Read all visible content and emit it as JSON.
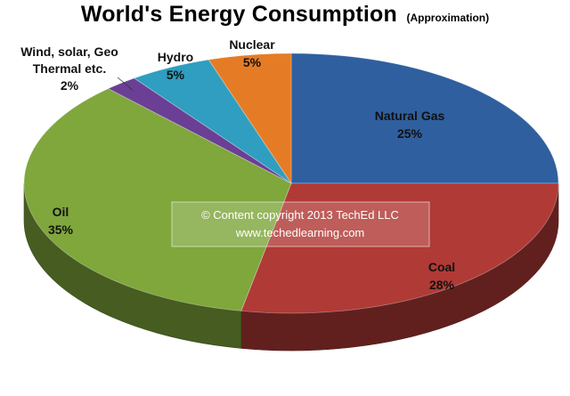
{
  "chart_data": {
    "type": "pie",
    "title": "World's Energy Consumption",
    "subtitle": "(Approximation)",
    "categories": [
      "Natural Gas",
      "Coal",
      "Oil",
      "Wind, solar, Geo Thermal etc.",
      "Hydro",
      "Nuclear"
    ],
    "values": [
      25,
      28,
      35,
      2,
      5,
      5
    ],
    "unit": "%",
    "labels": [
      {
        "lines": [
          "Natural Gas",
          "25%"
        ]
      },
      {
        "lines": [
          "Coal",
          "28%"
        ]
      },
      {
        "lines": [
          "Oil",
          "35%"
        ]
      },
      {
        "lines": [
          "Wind, solar, Geo",
          "Thermal etc.",
          "2%"
        ]
      },
      {
        "lines": [
          "Hydro",
          "5%"
        ]
      },
      {
        "lines": [
          "Nuclear",
          "5%"
        ]
      }
    ],
    "colors": [
      "#2f5f9e",
      "#b03a36",
      "#7fa73c",
      "#6a3f95",
      "#2f9ec0",
      "#e57c25"
    ],
    "style": "3d-tilted",
    "legend": "none"
  },
  "watermark": {
    "line1": "© Content copyright 2013 TechEd LLC",
    "line2": "www.techedlearning.com"
  }
}
